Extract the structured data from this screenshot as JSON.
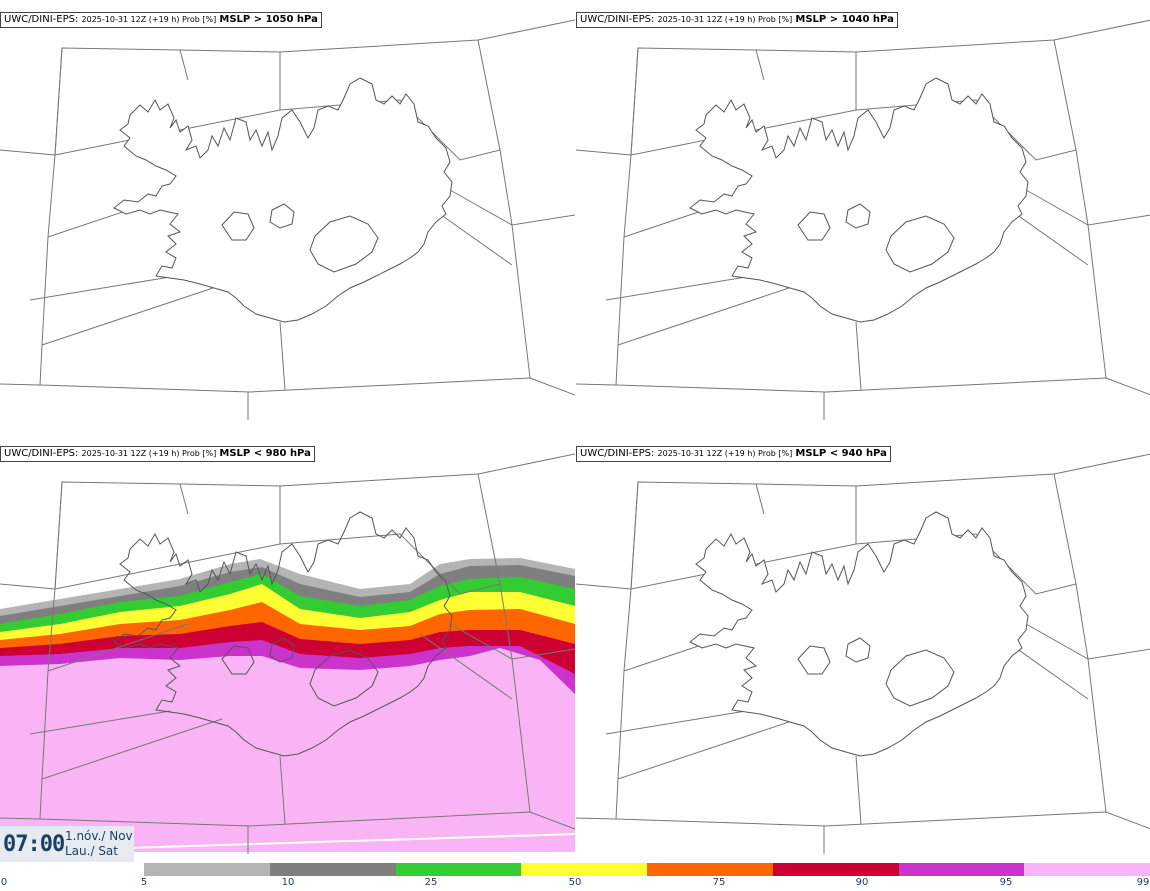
{
  "panels": [
    {
      "model": "UWC/DINI-EPS",
      "run": "2025-10-31 12Z (+19 h) Prob [%]",
      "threshold": "MSLP > 1050 hPa"
    },
    {
      "model": "UWC/DINI-EPS",
      "run": "2025-10-31 12Z (+19 h) Prob [%]",
      "threshold": "MSLP > 1040 hPa"
    },
    {
      "model": "UWC/DINI-EPS",
      "run": "2025-10-31 12Z (+19 h) Prob [%]",
      "threshold": "MSLP < 980 hPa"
    },
    {
      "model": "UWC/DINI-EPS",
      "run": "2025-10-31 12Z (+19 h) Prob [%]",
      "threshold": "MSLP < 940 hPa"
    }
  ],
  "valid_time": {
    "time": "07:00",
    "date_line1": "1.nóv./ Nov",
    "date_line2": "Lau./ Sat"
  },
  "colorbar": {
    "ticks": [
      "0",
      "5",
      "10",
      "25",
      "50",
      "75",
      "90",
      "95",
      "99"
    ],
    "colors": [
      "#ffffff",
      "#b4b4b4",
      "#7f7f7f",
      "#33cc33",
      "#ffff33",
      "#ff6600",
      "#cc0033",
      "#cc33cc",
      "#f9b4f6"
    ]
  },
  "colors": {
    "coast": "#555555",
    "grid": "#777777"
  }
}
